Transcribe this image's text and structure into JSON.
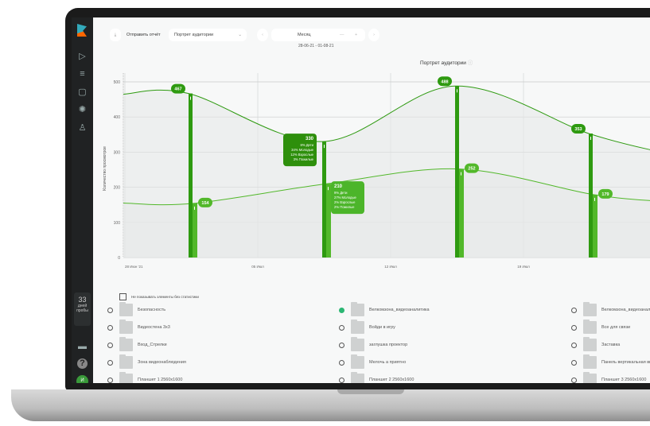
{
  "sidebar": {
    "trial_days": "33",
    "trial_label1": "дней",
    "trial_label2": "пробы",
    "avatar": "И"
  },
  "toolbar": {
    "send_report": "Отправить отчёт",
    "report_select": "Портрет аудитории",
    "period": "Месяц",
    "date_range": "28-06-21 - 01-08-21"
  },
  "chart_data": {
    "type": "area",
    "title": "Портрет аудитории",
    "ylabel": "Количество просмотров",
    "ylim": [
      0,
      500
    ],
    "yticks": [
      "0",
      "100",
      "200",
      "300",
      "400",
      "500"
    ],
    "xticks": [
      "28 Июн '21",
      "05 Июл",
      "12 Июл",
      "19 Июл"
    ],
    "grid": true,
    "bars_x": [
      "01 Июл",
      "08 Июл",
      "15 Июл",
      "22 Июл"
    ],
    "series": [
      {
        "values": [
          467,
          330,
          488,
          353
        ],
        "color": "#2e9a10"
      },
      {
        "values": [
          154,
          210,
          252,
          179
        ],
        "color": "#52b82a"
      }
    ],
    "tooltips": [
      {
        "value": "330",
        "lines": [
          "8% Дети",
          "34% Молодые",
          "12% Взрослые",
          "3% Пожилые"
        ],
        "color": "#2e8f0c"
      },
      {
        "value": "210",
        "lines": [
          "9% Дети",
          "27% Молодые",
          "2% Взрослые",
          "2% Пожилые"
        ],
        "color": "#4cb52a"
      }
    ]
  },
  "filter": {
    "hide_empty": "Не показывать элементы без статистики"
  },
  "items": [
    {
      "name": "Безопасность",
      "checked": false
    },
    {
      "name": "Велкомзона_видеоаналитика",
      "checked": true
    },
    {
      "name": "Велкомзона_видеоаналитика",
      "checked": false
    },
    {
      "name": "Видеостена 3x3",
      "checked": false
    },
    {
      "name": "Войди в игру",
      "checked": false
    },
    {
      "name": "Все для связи",
      "checked": false
    },
    {
      "name": "Вход_Стрелки",
      "checked": false
    },
    {
      "name": "заглушка проектор",
      "checked": false
    },
    {
      "name": "Заставка",
      "checked": false
    },
    {
      "name": "Зона видеонаблюдения",
      "checked": false
    },
    {
      "name": "Мелочь а приятно",
      "checked": false
    },
    {
      "name": "Панель вертикальная внутр",
      "checked": false
    },
    {
      "name": "Планшет 1 2560x1600",
      "checked": false
    },
    {
      "name": "Планшет 2 2560x1600",
      "checked": false
    },
    {
      "name": "Планшет 3 2560x1600",
      "checked": false
    }
  ]
}
